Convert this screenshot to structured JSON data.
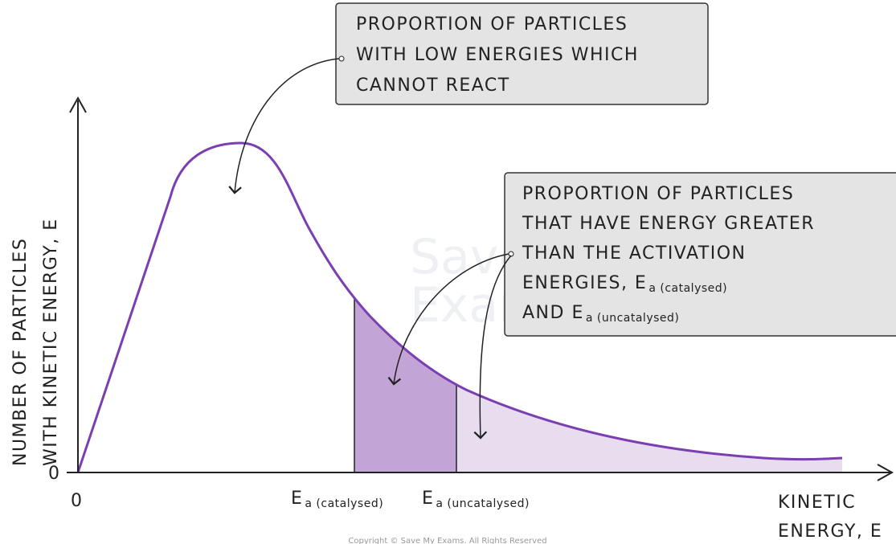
{
  "axes": {
    "y_label": [
      "NUMBER OF PARTICLES",
      "WITH KINETIC ENERGY, E"
    ],
    "x_label": [
      "KINETIC",
      "ENERGY, E"
    ],
    "y_origin": "0",
    "x_origin": "0"
  },
  "markers": [
    {
      "symbol": "E",
      "subscript": "a (catalysed)"
    },
    {
      "symbol": "E",
      "subscript": "a (uncatalysed)"
    }
  ],
  "callouts": [
    {
      "lines": [
        {
          "text": "PROPORTION OF PARTICLES"
        },
        {
          "text": "WITH LOW ENERGIES WHICH"
        },
        {
          "text": "CANNOT REACT"
        }
      ]
    },
    {
      "lines": [
        {
          "text": "PROPORTION OF PARTICLES"
        },
        {
          "text": "THAT HAVE ENERGY GREATER"
        },
        {
          "text": "THAN THE ACTIVATION"
        },
        {
          "text": "ENERGIES, E",
          "subscript": "a (catalysed)"
        },
        {
          "text": "AND E",
          "subscript": "a (uncatalysed)"
        }
      ]
    }
  ],
  "watermark": [
    "Save My",
    "Exams"
  ],
  "copyright": "Copyright © Save My Exams. All Rights Reserved"
}
